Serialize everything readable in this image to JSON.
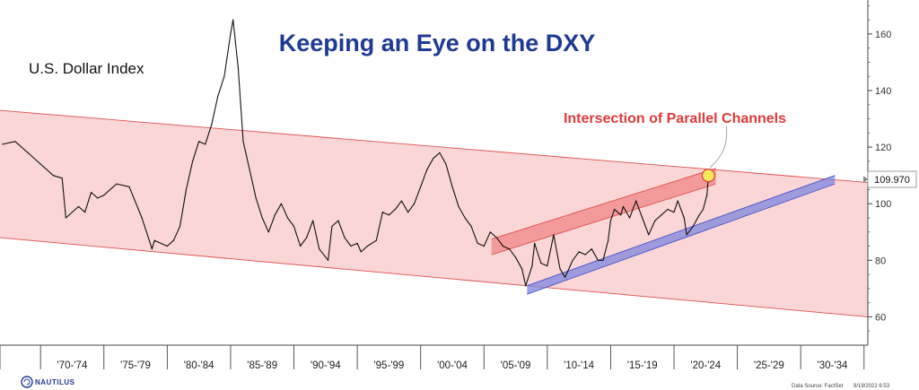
{
  "chart_data": {
    "type": "line",
    "title": "Keeping an Eye on the DXY",
    "series": [
      {
        "name": "U.S. Dollar Index",
        "x": [
          1967.0,
          1968.0,
          1969.0,
          1970.0,
          1971.0,
          1971.7,
          1972.0,
          1973.0,
          1973.5,
          1974.0,
          1974.5,
          1975.0,
          1976.0,
          1977.0,
          1978.0,
          1978.8,
          1979.0,
          1980.0,
          1980.5,
          1981.0,
          1981.5,
          1982.0,
          1982.5,
          1983.0,
          1983.5,
          1984.0,
          1984.5,
          1985.0,
          1985.2,
          1985.6,
          1986.0,
          1986.5,
          1987.0,
          1987.5,
          1988.0,
          1988.5,
          1989.0,
          1989.5,
          1990.0,
          1990.5,
          1991.0,
          1991.5,
          1992.0,
          1992.7,
          1993.0,
          1993.5,
          1994.0,
          1994.5,
          1995.0,
          1995.3,
          1995.8,
          1996.5,
          1997.0,
          1997.5,
          1998.0,
          1998.5,
          1999.0,
          1999.5,
          2000.0,
          2000.5,
          2001.0,
          2001.5,
          2002.0,
          2002.5,
          2003.0,
          2003.5,
          2004.0,
          2004.5,
          2005.0,
          2005.5,
          2006.0,
          2006.5,
          2007.0,
          2007.5,
          2008.0,
          2008.3,
          2008.8,
          2009.0,
          2009.5,
          2010.0,
          2010.5,
          2011.0,
          2011.4,
          2011.8,
          2012.0,
          2012.5,
          2013.0,
          2013.5,
          2014.0,
          2014.4,
          2014.8,
          2015.0,
          2015.3,
          2015.8,
          2016.0,
          2016.5,
          2017.0,
          2017.5,
          2018.0,
          2018.5,
          2019.0,
          2019.5,
          2020.0,
          2020.3,
          2020.8,
          2021.0,
          2021.5,
          2022.0,
          2022.3,
          2022.6,
          2022.72
        ],
        "values": [
          121,
          122,
          118,
          114,
          110,
          109,
          95,
          99,
          97,
          104,
          102,
          103,
          107,
          106,
          95,
          84,
          87,
          85,
          87,
          92,
          105,
          115,
          122,
          121,
          128,
          138,
          145,
          160,
          165,
          148,
          122,
          112,
          102,
          95,
          90,
          96,
          100,
          95,
          92,
          85,
          88,
          94,
          84,
          80,
          92,
          94,
          88,
          85,
          86,
          83,
          85,
          87,
          97,
          96,
          98,
          101,
          97,
          100,
          106,
          112,
          116,
          118,
          114,
          106,
          99,
          95,
          92,
          86,
          85,
          90,
          88,
          85,
          84,
          81,
          77,
          71,
          78,
          86,
          79,
          78,
          89,
          77,
          74,
          78,
          80,
          83,
          82,
          84,
          80,
          80,
          87,
          94,
          98,
          96,
          99,
          95,
          101,
          95,
          89,
          94,
          96,
          98,
          97,
          101,
          95,
          89,
          92,
          96,
          98,
          103,
          109.97
        ]
      }
    ],
    "last_value_label": "109.970",
    "annotation": "Intersection of Parallel Channels",
    "ylim": [
      50,
      172
    ],
    "yticks": [
      60,
      80,
      100,
      120,
      140,
      160
    ],
    "xlim": [
      1966.8,
      2035.3
    ],
    "xticks": [
      "'70-'74",
      "'75-'79",
      "'80-'84",
      "'85-'89",
      "'90-'94",
      "'95-'99",
      "'00-'04",
      "'05-'09",
      "'10-'14",
      "'15-'19",
      "'20-'24",
      "'25-'29",
      "'30-'34"
    ],
    "channels": [
      {
        "kind": "long-term down channel",
        "color": "#f5b5b5",
        "upper": [
          [
            1966.8,
            133
          ],
          [
            2035.3,
            107.5
          ]
        ],
        "lower": [
          [
            1966.8,
            88
          ],
          [
            2035.3,
            60
          ]
        ]
      },
      {
        "kind": "rising red channel",
        "color": "#f08585",
        "upper": [
          [
            2005.6,
            87.5
          ],
          [
            2023.3,
            112.5
          ]
        ],
        "lower": [
          [
            2005.6,
            82
          ],
          [
            2023.3,
            107
          ]
        ]
      },
      {
        "kind": "rising blue channel",
        "color": "#7f86e0",
        "upper": [
          [
            2008.4,
            71
          ],
          [
            2032.7,
            110
          ]
        ],
        "lower": [
          [
            2008.4,
            68
          ],
          [
            2032.7,
            107
          ]
        ]
      }
    ],
    "grid": false,
    "legend": "none"
  },
  "subtitle": "U.S. Dollar Index",
  "footer": {
    "logo_text": "NAUTILUS",
    "source": "Data Source: FactSet",
    "date": "9/19/2022 6:53"
  },
  "colors": {
    "title": "#1f3a93",
    "annotation": "#e03a3a",
    "marker": "#f6e85a"
  }
}
